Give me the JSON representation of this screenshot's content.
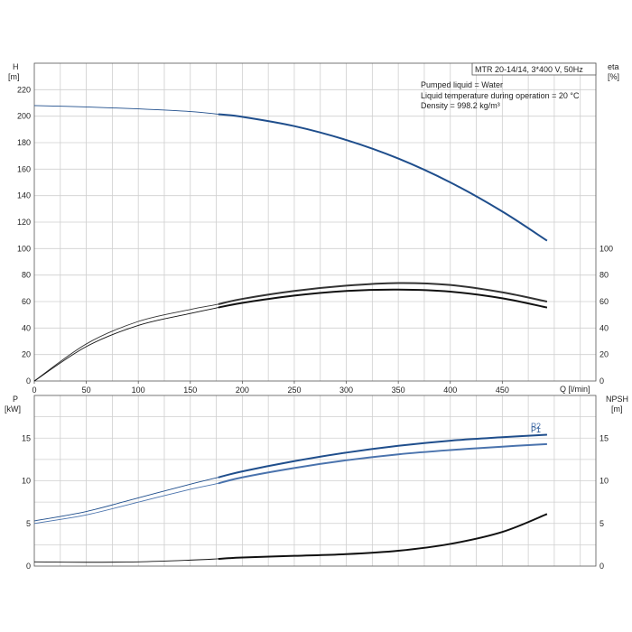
{
  "chart_data": [
    {
      "type": "line",
      "panel": "top",
      "ylabel_left": "H",
      "yunit_left": "[m]",
      "ylabel_right": "eta",
      "yunit_right": "[%]",
      "xlabel": "Q [l/min]",
      "xlim": [
        0,
        540
      ],
      "ylim_left": [
        0,
        240
      ],
      "ylim_right": [
        0,
        240
      ],
      "x_ticks": [
        0,
        50,
        100,
        150,
        200,
        250,
        300,
        350,
        400,
        450
      ],
      "y_ticks_left": [
        0,
        20,
        40,
        60,
        80,
        100,
        120,
        140,
        160,
        180,
        200,
        220
      ],
      "y_ticks_right": [
        0,
        20,
        40,
        60,
        80,
        100
      ],
      "grid": true,
      "model_label": "MTR 20-14/14, 3*400 V, 50Hz",
      "info_lines": [
        "Pumped liquid = Water",
        "Liquid temperature during operation = 20 °C",
        "Density = 998.2 kg/m³"
      ],
      "series": [
        {
          "id": "H",
          "color": "#1f4e8c",
          "x": [
            0,
            50,
            100,
            150,
            177,
            200,
            250,
            300,
            350,
            400,
            450,
            493
          ],
          "y": [
            208,
            207,
            205.5,
            203.5,
            201.5,
            199.5,
            192.5,
            182,
            168,
            150,
            128,
            106
          ]
        },
        {
          "id": "eta_outer",
          "color": "#333333",
          "x": [
            0,
            50,
            100,
            150,
            177,
            200,
            250,
            300,
            350,
            400,
            450,
            493
          ],
          "y": [
            0,
            28,
            45,
            54,
            58,
            62,
            68,
            72,
            74,
            72.5,
            67,
            60
          ]
        },
        {
          "id": "eta_inner",
          "color": "#111111",
          "x": [
            0,
            50,
            100,
            150,
            177,
            200,
            250,
            300,
            350,
            400,
            450,
            493
          ],
          "y": [
            0,
            26,
            42,
            51,
            55.5,
            59,
            64.5,
            68,
            69,
            67.5,
            62.5,
            55.5
          ]
        }
      ]
    },
    {
      "type": "line",
      "panel": "bottom",
      "ylabel_left": "P",
      "yunit_left": "[kW]",
      "ylabel_right": "NPSH",
      "yunit_right": "[m]",
      "xlim": [
        0,
        540
      ],
      "ylim_left": [
        0,
        20
      ],
      "ylim_right": [
        0,
        20
      ],
      "y_ticks_left": [
        0,
        5,
        10,
        15
      ],
      "y_ticks_right": [
        0,
        5,
        10,
        15
      ],
      "grid": true,
      "series": [
        {
          "id": "P1",
          "name": "P1",
          "color": "#1f4e8c",
          "x": [
            0,
            50,
            100,
            150,
            177,
            200,
            250,
            300,
            350,
            400,
            450,
            493
          ],
          "y": [
            5.3,
            6.4,
            8.0,
            9.6,
            10.4,
            11.1,
            12.3,
            13.3,
            14.1,
            14.7,
            15.1,
            15.4
          ]
        },
        {
          "id": "P2",
          "name": "P2",
          "color": "#4a73ad",
          "x": [
            0,
            50,
            100,
            150,
            177,
            200,
            250,
            300,
            350,
            400,
            450,
            493
          ],
          "y": [
            5.0,
            6.0,
            7.5,
            9.0,
            9.7,
            10.4,
            11.5,
            12.4,
            13.1,
            13.6,
            14.0,
            14.3
          ]
        },
        {
          "id": "NPSH",
          "color": "#111111",
          "x": [
            0,
            50,
            100,
            150,
            177,
            200,
            250,
            300,
            350,
            400,
            450,
            493
          ],
          "y": [
            0.5,
            0.45,
            0.5,
            0.7,
            0.85,
            1.0,
            1.2,
            1.4,
            1.8,
            2.6,
            4.0,
            6.1
          ]
        }
      ]
    }
  ]
}
